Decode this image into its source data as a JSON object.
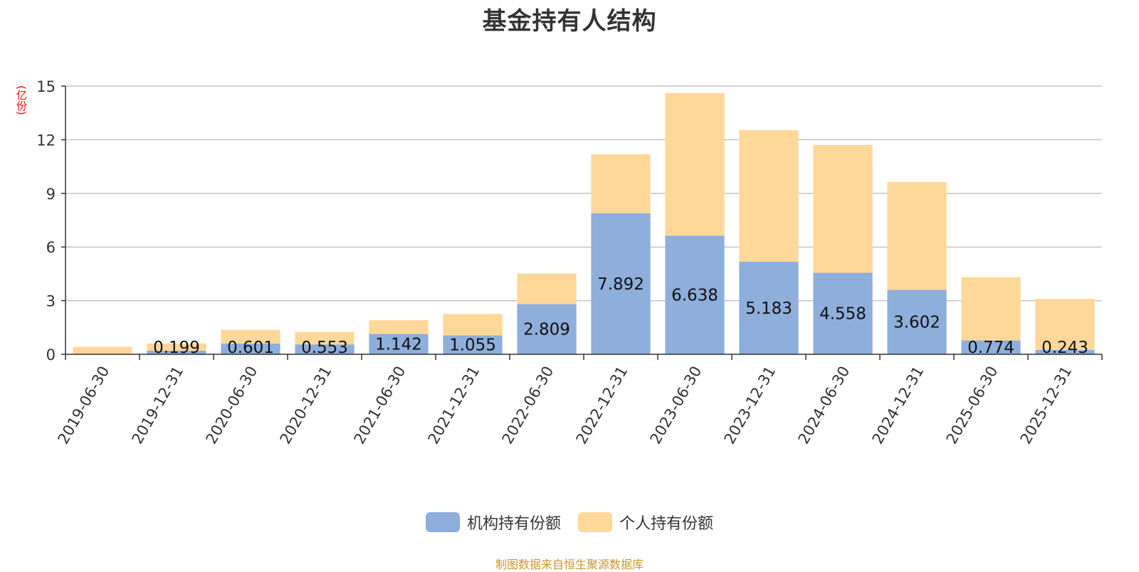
{
  "chart_data": {
    "type": "bar",
    "stacked": true,
    "title": "基金持有人结构",
    "y_unit": "(亿份)",
    "ylim": [
      0,
      15
    ],
    "yticks": [
      0,
      3,
      6,
      9,
      12,
      15
    ],
    "grid": true,
    "legend_position": "bottom",
    "categories": [
      "2019-06-30",
      "2019-12-31",
      "2020-06-30",
      "2020-12-31",
      "2021-06-30",
      "2021-12-31",
      "2022-06-30",
      "2022-12-31",
      "2023-06-30",
      "2023-12-31",
      "2024-06-30",
      "2024-12-31",
      "2025-06-30",
      "2025-12-31"
    ],
    "series": [
      {
        "name": "机构持有份额",
        "color": "#8eaedb",
        "values": [
          0,
          0.199,
          0.601,
          0.553,
          1.142,
          1.055,
          2.809,
          7.892,
          6.638,
          5.183,
          4.558,
          3.602,
          0.774,
          0.243
        ],
        "labels": [
          "",
          "0.199",
          "0.601",
          "0.553",
          "1.142",
          "1.055",
          "2.809",
          "7.892",
          "6.638",
          "5.183",
          "4.558",
          "3.602",
          "0.774",
          "0.243"
        ]
      },
      {
        "name": "个人持有份额",
        "color": "#fed898",
        "values": [
          0.42,
          0.41,
          0.77,
          0.69,
          0.76,
          1.2,
          1.71,
          3.3,
          7.97,
          7.35,
          7.15,
          6.03,
          3.54,
          2.86
        ]
      }
    ]
  },
  "legend": {
    "institution": {
      "label": "机构持有份额",
      "color": "#8eaedb"
    },
    "individual": {
      "label": "个人持有份额",
      "color": "#fed898"
    }
  },
  "source": "制图数据来自恒生聚源数据库"
}
